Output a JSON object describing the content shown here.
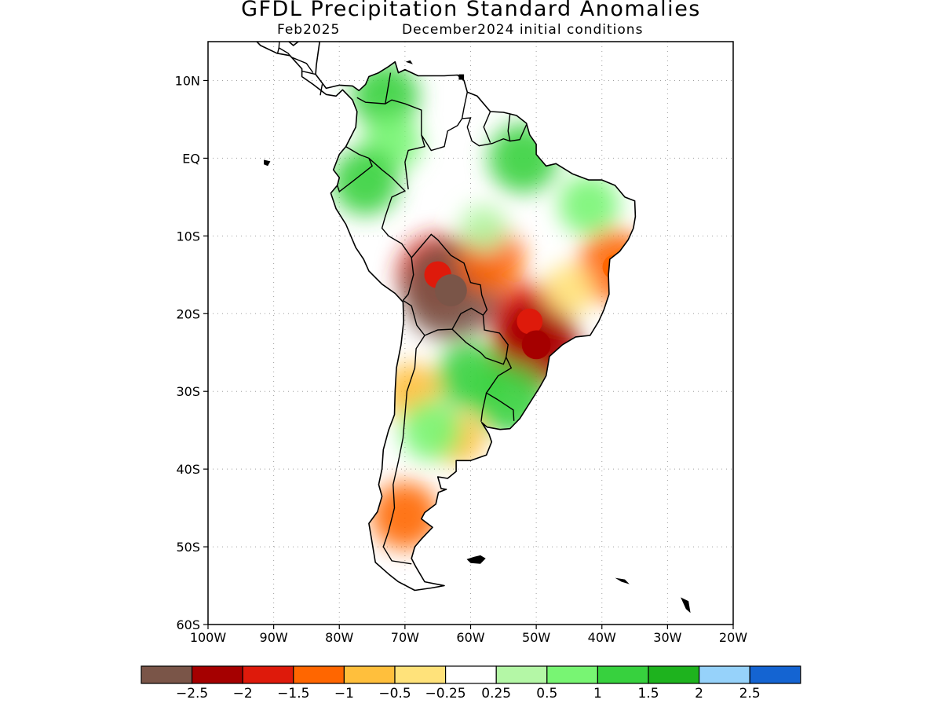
{
  "title": "GFDL Precipitation Standard Anomalies",
  "subtitle": {
    "valid": "Feb2025",
    "init": "December2024 initial conditions"
  },
  "map": {
    "lon_range": [
      -100,
      -20
    ],
    "lat_range": [
      -60,
      15
    ],
    "lat_ticks": [
      {
        "value": 10,
        "label": "10N"
      },
      {
        "value": 0,
        "label": "EQ"
      },
      {
        "value": -10,
        "label": "10S"
      },
      {
        "value": -20,
        "label": "20S"
      },
      {
        "value": -30,
        "label": "30S"
      },
      {
        "value": -40,
        "label": "40S"
      },
      {
        "value": -50,
        "label": "50S"
      },
      {
        "value": -60,
        "label": "60S"
      }
    ],
    "lon_ticks": [
      {
        "value": -100,
        "label": "100W"
      },
      {
        "value": -90,
        "label": "90W"
      },
      {
        "value": -80,
        "label": "80W"
      },
      {
        "value": -70,
        "label": "70W"
      },
      {
        "value": -60,
        "label": "60W"
      },
      {
        "value": -50,
        "label": "50W"
      },
      {
        "value": -40,
        "label": "40W"
      },
      {
        "value": -30,
        "label": "30W"
      },
      {
        "value": -20,
        "label": "20W"
      }
    ]
  },
  "colorbar": {
    "colors": [
      "#7a5548",
      "#a50000",
      "#de1a0b",
      "#ff6600",
      "#ffbf3c",
      "#ffe27a",
      "#ffffff",
      "#b4f7a6",
      "#78f573",
      "#37d13e",
      "#1eb31e",
      "#96d2fa",
      "#1464d2"
    ],
    "labels": [
      "-2.5",
      "-2",
      "-1.5",
      "-1",
      "-0.5",
      "-0.25",
      "0.25",
      "0.5",
      "1",
      "1.5",
      "2",
      "2.5"
    ]
  },
  "anomaly_regions": [
    {
      "lon": -73,
      "lat": 8,
      "value": 1.2
    },
    {
      "lon": -72,
      "lat": 2,
      "value": 0.8
    },
    {
      "lon": -76,
      "lat": -3,
      "value": 1.2
    },
    {
      "lon": -52,
      "lat": 0,
      "value": 1.3
    },
    {
      "lon": -42,
      "lat": -6,
      "value": 0.9
    },
    {
      "lon": -65,
      "lat": -15,
      "value": -1.8
    },
    {
      "lon": -63,
      "lat": -17,
      "value": -2.6
    },
    {
      "lon": -57,
      "lat": -13,
      "value": -1.2
    },
    {
      "lon": -51,
      "lat": -21,
      "value": -1.6
    },
    {
      "lon": -50,
      "lat": -24,
      "value": -2.1
    },
    {
      "lon": -38,
      "lat": -14,
      "value": -1.5
    },
    {
      "lon": -60,
      "lat": -28,
      "value": 1.2
    },
    {
      "lon": -54,
      "lat": -31,
      "value": 1.4
    },
    {
      "lon": -69,
      "lat": -30,
      "value": -0.7
    },
    {
      "lon": -70,
      "lat": -46,
      "value": -1.2
    },
    {
      "lon": -62,
      "lat": -36,
      "value": -0.6
    },
    {
      "lon": -66,
      "lat": -35,
      "value": 0.9
    },
    {
      "lon": -58,
      "lat": -9,
      "value": 0.3
    },
    {
      "lon": -45,
      "lat": -17,
      "value": -0.5
    }
  ]
}
